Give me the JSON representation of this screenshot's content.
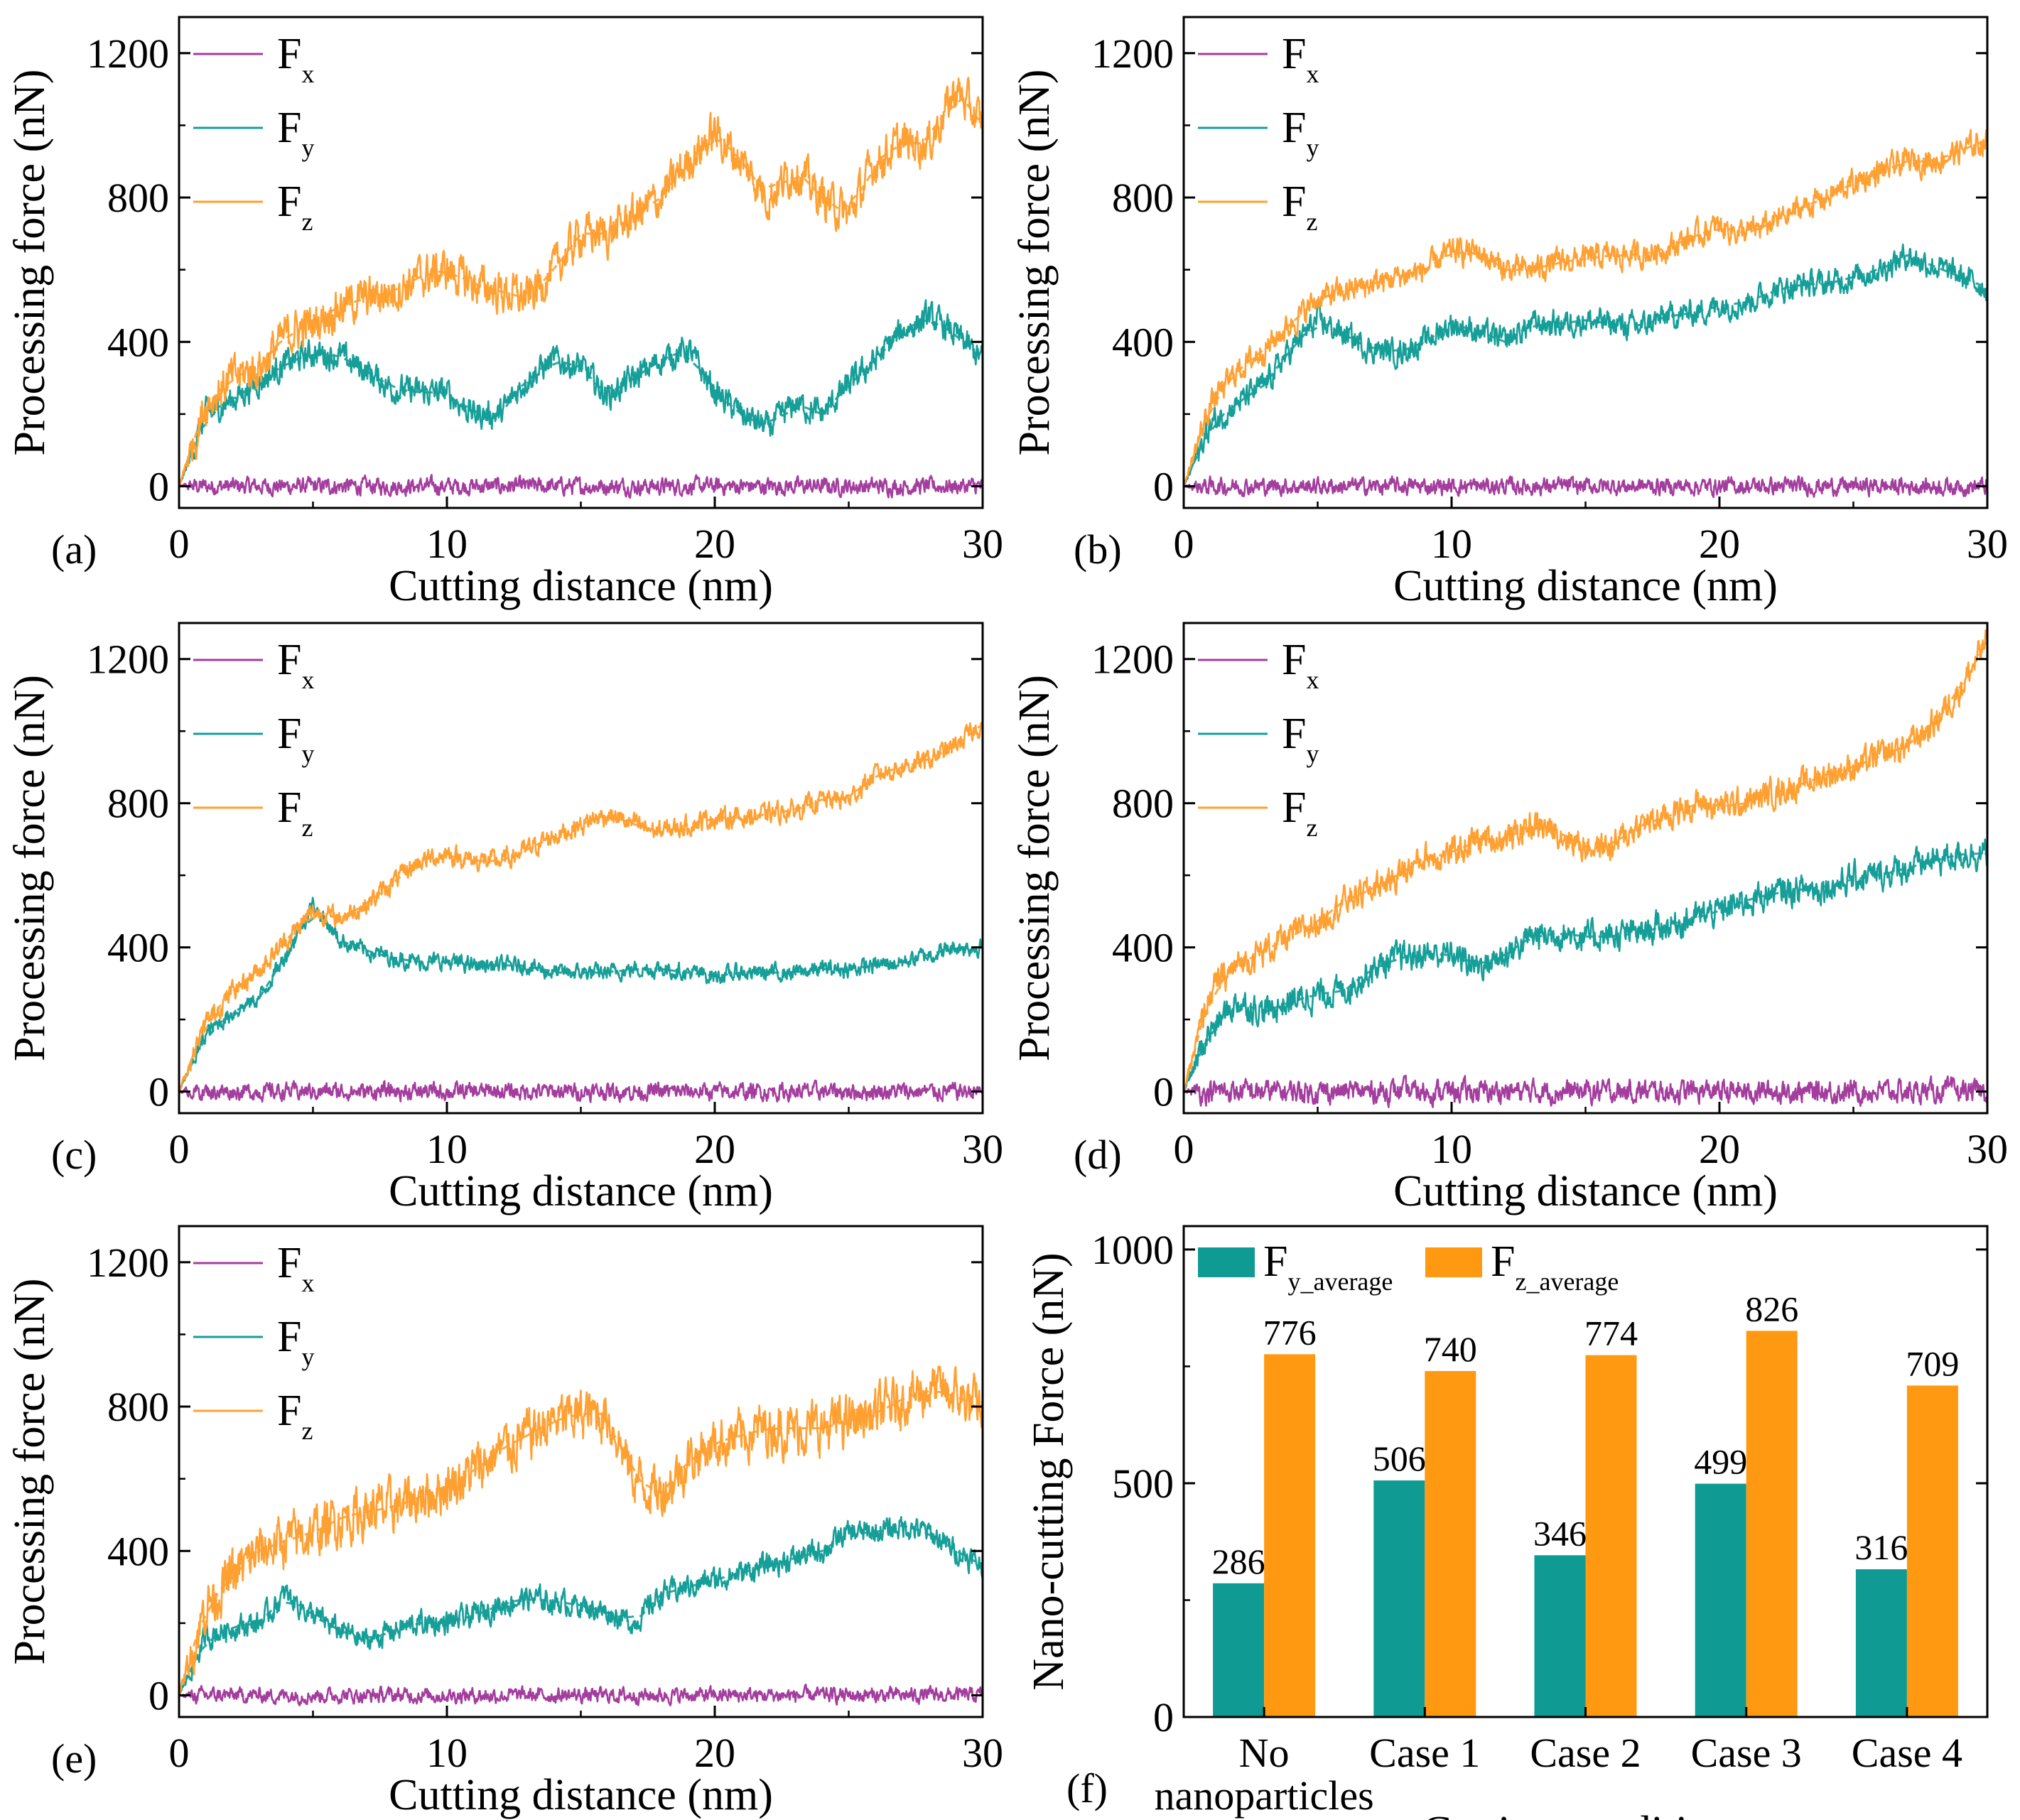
{
  "figure": {
    "line_legend": {
      "items": [
        {
          "label": "F",
          "sub": "x"
        },
        {
          "label": "F",
          "sub": "y"
        },
        {
          "label": "F",
          "sub": "z"
        }
      ]
    },
    "colors": {
      "fx": "#a43e9e",
      "fy": "#169e98",
      "fz": "#ffa033",
      "bar_y": "#0f9a93",
      "bar_z": "#ff9912"
    }
  },
  "chart_data": [
    {
      "panel": "(a)",
      "type": "line",
      "xlabel": "Cutting distance (nm)",
      "ylabel": "Processing force (nN)",
      "xlim": [
        0,
        30
      ],
      "ylim": [
        -60,
        1300
      ],
      "xticks": [
        "0",
        "10",
        "20",
        "30"
      ],
      "yticks": [
        "0",
        "400",
        "800",
        "1200"
      ],
      "series": [
        {
          "name": "Fx",
          "color": "#a43e9e",
          "noise": 18,
          "x": [
            0,
            30
          ],
          "y": [
            0,
            0
          ]
        },
        {
          "name": "Fy",
          "color": "#169e98",
          "noise": 30,
          "x": [
            0,
            1,
            2,
            3,
            4,
            5,
            6,
            7,
            8,
            9,
            10,
            11,
            12,
            13,
            14,
            15,
            16,
            17,
            18,
            19,
            20,
            21,
            22,
            23,
            24,
            25,
            26,
            27,
            28,
            29,
            30
          ],
          "y": [
            0,
            200,
            240,
            290,
            340,
            370,
            360,
            320,
            270,
            260,
            260,
            200,
            200,
            300,
            350,
            330,
            250,
            300,
            350,
            380,
            260,
            200,
            160,
            230,
            200,
            280,
            350,
            430,
            470,
            420,
            350
          ]
        },
        {
          "name": "Fz",
          "color": "#ffa033",
          "noise": 45,
          "x": [
            0,
            1,
            2,
            3,
            4,
            5,
            6,
            7,
            8,
            9,
            10,
            11,
            12,
            13,
            14,
            15,
            16,
            17,
            18,
            19,
            20,
            21,
            22,
            23,
            24,
            25,
            26,
            27,
            28,
            29,
            30
          ],
          "y": [
            0,
            230,
            300,
            330,
            420,
            450,
            500,
            520,
            540,
            580,
            600,
            560,
            540,
            520,
            600,
            700,
            700,
            750,
            800,
            900,
            980,
            900,
            800,
            880,
            800,
            750,
            900,
            950,
            950,
            1100,
            1000
          ]
        }
      ]
    },
    {
      "panel": "(b)",
      "type": "line",
      "xlabel": "Cutting distance (nm)",
      "ylabel": "Processing force (nN)",
      "xlim": [
        0,
        30
      ],
      "ylim": [
        -60,
        1300
      ],
      "xticks": [
        "0",
        "10",
        "20",
        "30"
      ],
      "yticks": [
        "0",
        "400",
        "800",
        "1200"
      ],
      "series": [
        {
          "name": "Fx",
          "color": "#a43e9e",
          "noise": 18,
          "x": [
            0,
            30
          ],
          "y": [
            0,
            0
          ]
        },
        {
          "name": "Fy",
          "color": "#169e98",
          "noise": 28,
          "x": [
            0,
            1,
            2,
            3,
            4,
            5,
            6,
            7,
            8,
            9,
            10,
            11,
            12,
            13,
            14,
            15,
            16,
            17,
            18,
            19,
            20,
            21,
            22,
            23,
            24,
            25,
            26,
            27,
            28,
            29,
            30
          ],
          "y": [
            0,
            170,
            230,
            280,
            380,
            460,
            420,
            380,
            370,
            400,
            450,
            430,
            400,
            450,
            450,
            460,
            450,
            440,
            470,
            480,
            500,
            510,
            540,
            560,
            560,
            580,
            600,
            640,
            610,
            580,
            550
          ]
        },
        {
          "name": "Fz",
          "color": "#ffa033",
          "noise": 28,
          "x": [
            0,
            1,
            2,
            3,
            4,
            5,
            6,
            7,
            8,
            9,
            10,
            11,
            12,
            13,
            14,
            15,
            16,
            17,
            18,
            19,
            20,
            21,
            22,
            23,
            24,
            25,
            26,
            27,
            28,
            29,
            30
          ],
          "y": [
            0,
            230,
            320,
            380,
            450,
            520,
            540,
            560,
            580,
            600,
            650,
            650,
            600,
            600,
            620,
            630,
            640,
            640,
            660,
            690,
            720,
            700,
            730,
            770,
            800,
            840,
            870,
            900,
            900,
            930,
            960
          ]
        }
      ]
    },
    {
      "panel": "(c)",
      "type": "line",
      "xlabel": "Cutting distance (nm)",
      "ylabel": "Processing force (nN)",
      "xlim": [
        0,
        30
      ],
      "ylim": [
        -60,
        1300
      ],
      "xticks": [
        "0",
        "10",
        "20",
        "30"
      ],
      "yticks": [
        "0",
        "400",
        "800",
        "1200"
      ],
      "series": [
        {
          "name": "Fx",
          "color": "#a43e9e",
          "noise": 18,
          "x": [
            0,
            30
          ],
          "y": [
            0,
            0
          ]
        },
        {
          "name": "Fy",
          "color": "#169e98",
          "noise": 18,
          "x": [
            0,
            1,
            2,
            3,
            4,
            5,
            6,
            7,
            8,
            9,
            10,
            11,
            12,
            13,
            14,
            15,
            16,
            17,
            18,
            19,
            20,
            21,
            22,
            23,
            24,
            25,
            26,
            27,
            28,
            29,
            30
          ],
          "y": [
            0,
            160,
            220,
            260,
            380,
            520,
            420,
            390,
            370,
            360,
            360,
            350,
            350,
            350,
            330,
            330,
            330,
            340,
            340,
            330,
            320,
            330,
            330,
            330,
            340,
            340,
            350,
            360,
            380,
            400,
            400
          ]
        },
        {
          "name": "Fz",
          "color": "#ffa033",
          "noise": 22,
          "x": [
            0,
            1,
            2,
            3,
            4,
            5,
            6,
            7,
            8,
            9,
            10,
            11,
            12,
            13,
            14,
            15,
            16,
            17,
            18,
            19,
            20,
            21,
            22,
            23,
            24,
            25,
            26,
            27,
            28,
            29,
            30
          ],
          "y": [
            0,
            190,
            280,
            340,
            420,
            500,
            480,
            520,
            580,
            640,
            660,
            640,
            640,
            670,
            710,
            740,
            770,
            740,
            720,
            740,
            760,
            760,
            770,
            780,
            810,
            810,
            880,
            900,
            920,
            960,
            1020
          ]
        }
      ]
    },
    {
      "panel": "(d)",
      "type": "line",
      "xlabel": "Cutting distance (nm)",
      "ylabel": "Processing force (nN)",
      "xlim": [
        0,
        30
      ],
      "ylim": [
        -60,
        1300
      ],
      "xticks": [
        "0",
        "10",
        "20",
        "30"
      ],
      "yticks": [
        "0",
        "400",
        "800",
        "1200"
      ],
      "series": [
        {
          "name": "Fx",
          "color": "#a43e9e",
          "noise": 24,
          "x": [
            0,
            30
          ],
          "y": [
            0,
            0
          ]
        },
        {
          "name": "Fy",
          "color": "#169e98",
          "noise": 32,
          "x": [
            0,
            1,
            2,
            3,
            4,
            5,
            6,
            7,
            8,
            9,
            10,
            11,
            12,
            13,
            14,
            15,
            16,
            17,
            18,
            19,
            20,
            21,
            22,
            23,
            24,
            25,
            26,
            27,
            28,
            29,
            30
          ],
          "y": [
            0,
            170,
            250,
            220,
            250,
            270,
            280,
            340,
            370,
            380,
            380,
            350,
            380,
            430,
            440,
            430,
            430,
            440,
            460,
            480,
            500,
            530,
            550,
            560,
            570,
            590,
            600,
            620,
            640,
            660,
            660
          ]
        },
        {
          "name": "Fz",
          "color": "#ffa033",
          "noise": 32,
          "x": [
            0,
            1,
            2,
            3,
            4,
            5,
            6,
            7,
            8,
            9,
            10,
            11,
            12,
            13,
            14,
            15,
            16,
            17,
            18,
            19,
            20,
            21,
            22,
            23,
            24,
            25,
            26,
            27,
            28,
            29,
            30
          ],
          "y": [
            0,
            280,
            350,
            390,
            430,
            470,
            530,
            560,
            600,
            650,
            660,
            700,
            700,
            740,
            720,
            680,
            680,
            740,
            760,
            800,
            790,
            800,
            830,
            850,
            880,
            900,
            930,
            960,
            1020,
            1120,
            1250
          ]
        }
      ]
    },
    {
      "panel": "(e)",
      "type": "line",
      "xlabel": "Cutting distance (nm)",
      "ylabel": "Processing force (nN)",
      "xlim": [
        0,
        30
      ],
      "ylim": [
        -60,
        1300
      ],
      "xticks": [
        "0",
        "10",
        "20",
        "30"
      ],
      "yticks": [
        "0",
        "400",
        "800",
        "1200"
      ],
      "series": [
        {
          "name": "Fx",
          "color": "#a43e9e",
          "noise": 16,
          "x": [
            0,
            30
          ],
          "y": [
            0,
            0
          ]
        },
        {
          "name": "Fy",
          "color": "#169e98",
          "noise": 26,
          "x": [
            0,
            1,
            2,
            3,
            4,
            5,
            6,
            7,
            8,
            9,
            10,
            11,
            12,
            13,
            14,
            15,
            16,
            17,
            18,
            19,
            20,
            21,
            22,
            23,
            24,
            25,
            26,
            27,
            28,
            29,
            30
          ],
          "y": [
            0,
            160,
            190,
            200,
            280,
            220,
            180,
            150,
            180,
            200,
            200,
            220,
            250,
            270,
            260,
            250,
            230,
            200,
            280,
            300,
            320,
            340,
            360,
            380,
            400,
            450,
            450,
            470,
            450,
            400,
            360
          ]
        },
        {
          "name": "Fz",
          "color": "#ffa033",
          "noise": 55,
          "x": [
            0,
            1,
            2,
            3,
            4,
            5,
            6,
            7,
            8,
            9,
            10,
            11,
            12,
            13,
            14,
            15,
            16,
            17,
            18,
            19,
            20,
            21,
            22,
            23,
            24,
            25,
            26,
            27,
            28,
            29,
            30
          ],
          "y": [
            0,
            250,
            330,
            400,
            430,
            450,
            490,
            510,
            520,
            550,
            580,
            620,
            680,
            720,
            760,
            780,
            780,
            600,
            560,
            650,
            700,
            720,
            740,
            740,
            740,
            760,
            780,
            820,
            850,
            830,
            790
          ]
        }
      ]
    },
    {
      "panel": "(f)",
      "type": "bar",
      "title": "",
      "xlabel": "Cutting conditions",
      "ylabel": "Nano-cutting Force (nN)",
      "ylim": [
        0,
        1050
      ],
      "yticks": [
        "0",
        "500",
        "1000"
      ],
      "categories": [
        [
          "No",
          "nanoparticles"
        ],
        [
          "Case 1"
        ],
        [
          "Case 2"
        ],
        [
          "Case 3"
        ],
        [
          "Case 4"
        ]
      ],
      "legend": [
        {
          "label": "F",
          "sub": "y_average",
          "color": "#0f9a93"
        },
        {
          "label": "F",
          "sub": "z_average",
          "color": "#ff9912"
        }
      ],
      "series": [
        {
          "name": "Fy_average",
          "color": "#0f9a93",
          "values": [
            286,
            506,
            346,
            499,
            316
          ]
        },
        {
          "name": "Fz_average",
          "color": "#ff9912",
          "values": [
            776,
            740,
            774,
            826,
            709
          ]
        }
      ]
    }
  ]
}
